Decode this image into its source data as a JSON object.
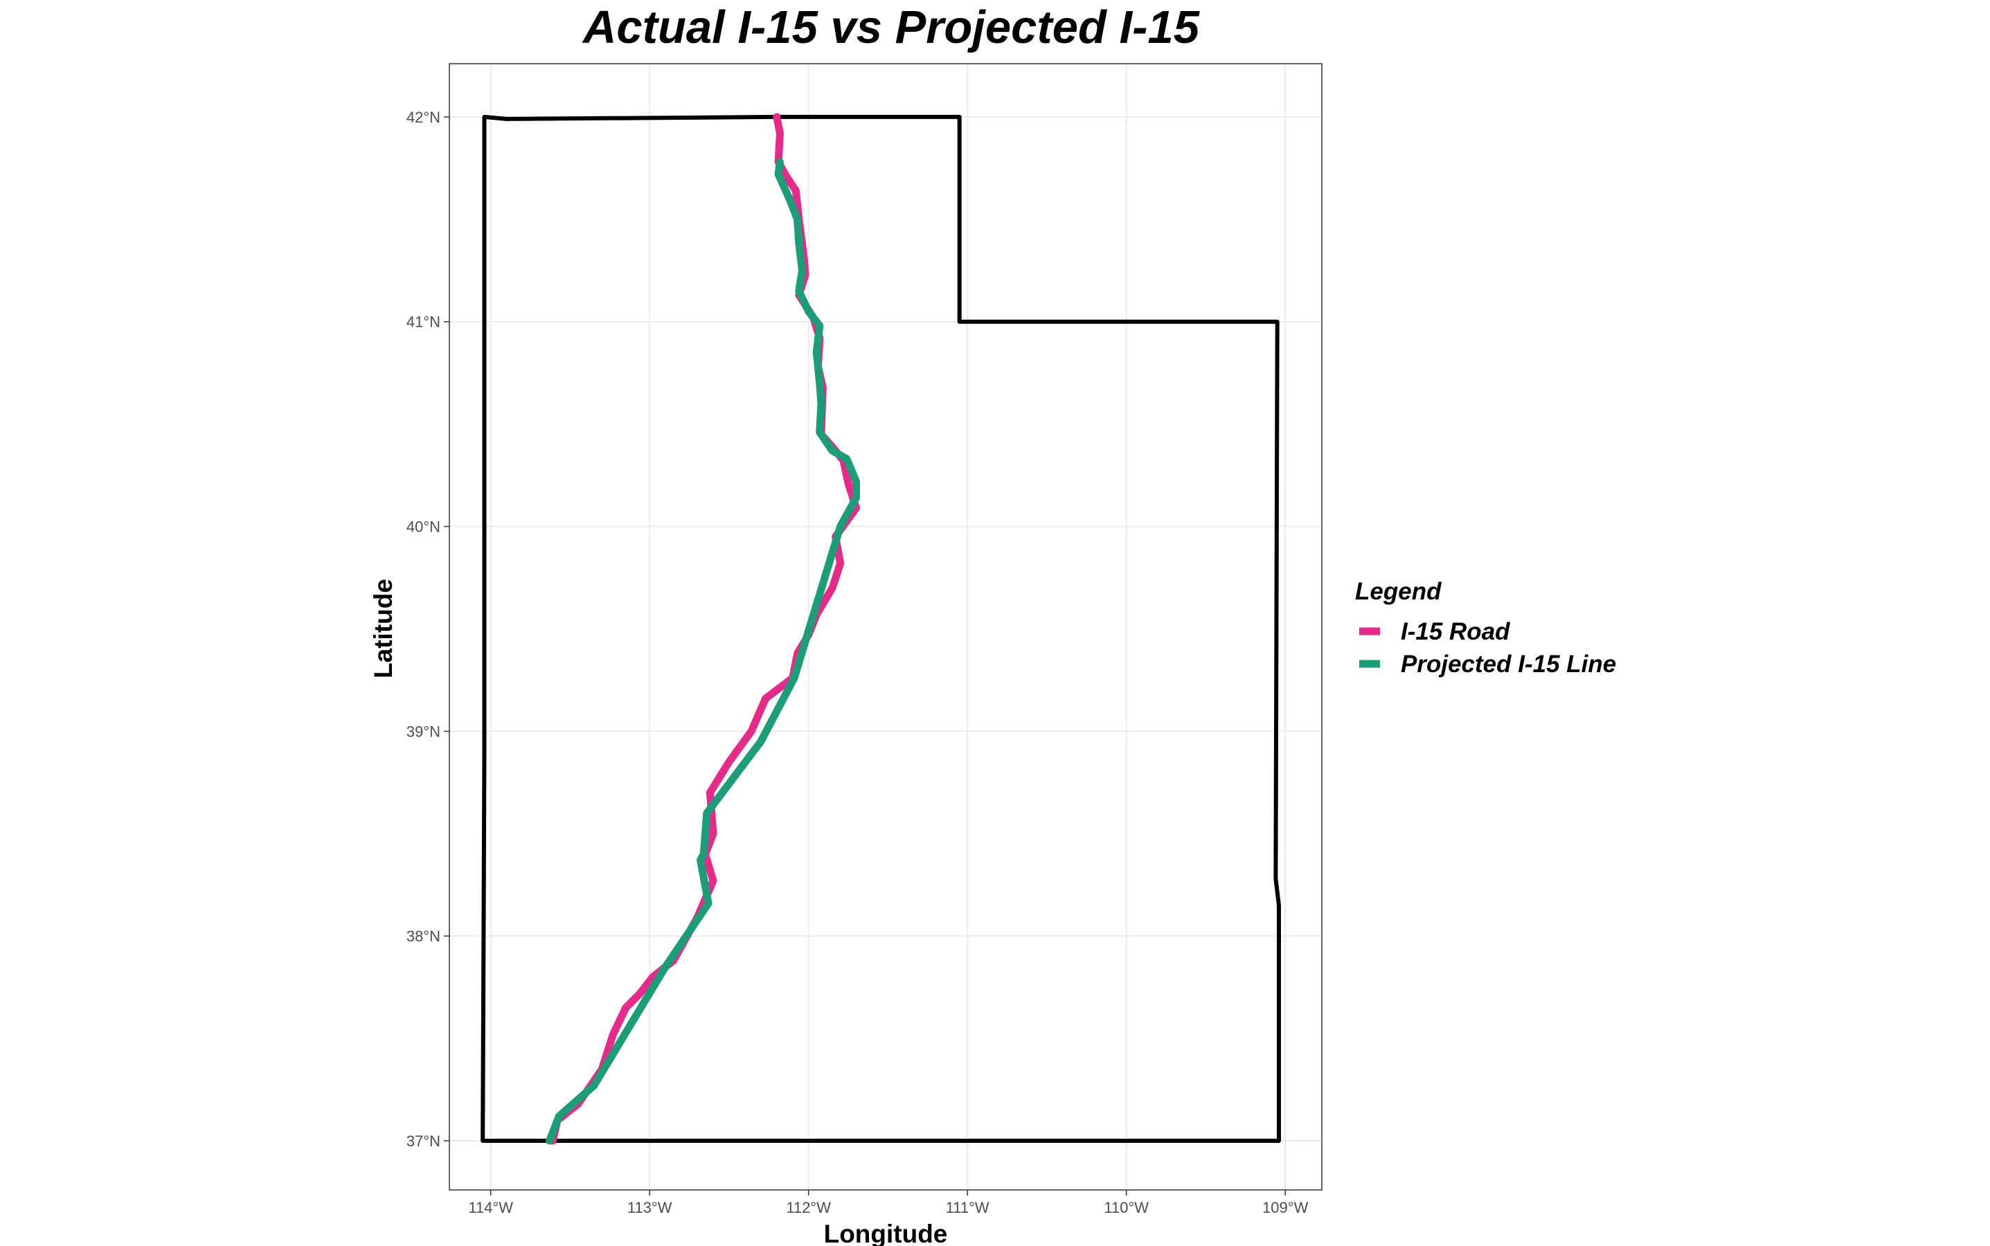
{
  "chart_data": {
    "type": "map",
    "title": "Actual I-15 vs Projected I-15",
    "xlabel": "Longitude",
    "ylabel": "Latitude",
    "xlim": [
      -114.26,
      -108.77
    ],
    "ylim": [
      36.76,
      42.26
    ],
    "x_ticks": [
      {
        "value": -114,
        "label": "114°W"
      },
      {
        "value": -113,
        "label": "113°W"
      },
      {
        "value": -112,
        "label": "112°W"
      },
      {
        "value": -111,
        "label": "111°W"
      },
      {
        "value": -110,
        "label": "110°W"
      },
      {
        "value": -109,
        "label": "109°W"
      }
    ],
    "y_ticks": [
      {
        "value": 37,
        "label": "37°N"
      },
      {
        "value": 38,
        "label": "38°N"
      },
      {
        "value": 39,
        "label": "39°N"
      },
      {
        "value": 40,
        "label": "40°N"
      },
      {
        "value": 41,
        "label": "41°N"
      },
      {
        "value": 42,
        "label": "42°N"
      }
    ],
    "grid": true,
    "legend": {
      "title": "Legend",
      "placement": "right",
      "entries": [
        {
          "label": "I-15 Road",
          "color": "#e7298a"
        },
        {
          "label": "Projected I-15 Line",
          "color": "#1b9e77"
        }
      ]
    },
    "boundary": {
      "color": "#000000",
      "points": [
        [
          -114.04,
          42.0
        ],
        [
          -113.9,
          41.99
        ],
        [
          -112.2,
          42.0
        ],
        [
          -111.05,
          42.0
        ],
        [
          -111.05,
          41.0
        ],
        [
          -110.5,
          41.0
        ],
        [
          -109.05,
          41.0
        ],
        [
          -109.06,
          38.28
        ],
        [
          -109.04,
          38.15
        ],
        [
          -109.04,
          37.0
        ],
        [
          -110.5,
          37.0
        ],
        [
          -114.05,
          37.0
        ],
        [
          -114.04,
          38.9
        ],
        [
          -114.04,
          42.0
        ]
      ]
    },
    "series": [
      {
        "name": "I-15 Road",
        "color": "#e7298a",
        "points": [
          [
            -112.2,
            42.0
          ],
          [
            -112.18,
            41.92
          ],
          [
            -112.19,
            41.78
          ],
          [
            -112.14,
            41.71
          ],
          [
            -112.08,
            41.64
          ],
          [
            -112.06,
            41.5
          ],
          [
            -112.03,
            41.32
          ],
          [
            -112.02,
            41.23
          ],
          [
            -112.06,
            41.13
          ],
          [
            -111.97,
            41.02
          ],
          [
            -111.93,
            40.92
          ],
          [
            -111.94,
            40.78
          ],
          [
            -111.91,
            40.68
          ],
          [
            -111.92,
            40.45
          ],
          [
            -111.83,
            40.37
          ],
          [
            -111.78,
            40.32
          ],
          [
            -111.75,
            40.21
          ],
          [
            -111.7,
            40.09
          ],
          [
            -111.83,
            39.95
          ],
          [
            -111.8,
            39.82
          ],
          [
            -111.85,
            39.7
          ],
          [
            -111.95,
            39.57
          ],
          [
            -112.0,
            39.47
          ],
          [
            -112.07,
            39.38
          ],
          [
            -112.1,
            39.26
          ],
          [
            -112.27,
            39.16
          ],
          [
            -112.36,
            39.0
          ],
          [
            -112.5,
            38.85
          ],
          [
            -112.62,
            38.7
          ],
          [
            -112.6,
            38.5
          ],
          [
            -112.65,
            38.4
          ],
          [
            -112.6,
            38.27
          ],
          [
            -112.7,
            38.09
          ],
          [
            -112.85,
            37.88
          ],
          [
            -112.98,
            37.8
          ],
          [
            -113.06,
            37.72
          ],
          [
            -113.15,
            37.65
          ],
          [
            -113.23,
            37.52
          ],
          [
            -113.3,
            37.35
          ],
          [
            -113.45,
            37.18
          ],
          [
            -113.58,
            37.1
          ],
          [
            -113.61,
            37.0
          ]
        ]
      },
      {
        "name": "Projected I-15 Line",
        "color": "#1b9e77",
        "points": [
          [
            -112.18,
            41.78
          ],
          [
            -112.19,
            41.72
          ],
          [
            -112.12,
            41.6
          ],
          [
            -112.07,
            41.5
          ],
          [
            -112.06,
            41.38
          ],
          [
            -112.04,
            41.25
          ],
          [
            -112.06,
            41.15
          ],
          [
            -112.0,
            41.05
          ],
          [
            -111.93,
            40.98
          ],
          [
            -111.95,
            40.85
          ],
          [
            -111.93,
            40.7
          ],
          [
            -111.92,
            40.6
          ],
          [
            -111.93,
            40.46
          ],
          [
            -111.85,
            40.37
          ],
          [
            -111.76,
            40.33
          ],
          [
            -111.7,
            40.22
          ],
          [
            -111.7,
            40.14
          ],
          [
            -111.8,
            40.0
          ],
          [
            -112.09,
            39.26
          ],
          [
            -112.3,
            38.95
          ],
          [
            -112.64,
            38.6
          ],
          [
            -112.66,
            38.4
          ],
          [
            -112.68,
            38.37
          ],
          [
            -112.63,
            38.16
          ],
          [
            -112.9,
            37.85
          ],
          [
            -113.35,
            37.27
          ],
          [
            -113.57,
            37.12
          ],
          [
            -113.63,
            37.0
          ]
        ]
      }
    ]
  }
}
